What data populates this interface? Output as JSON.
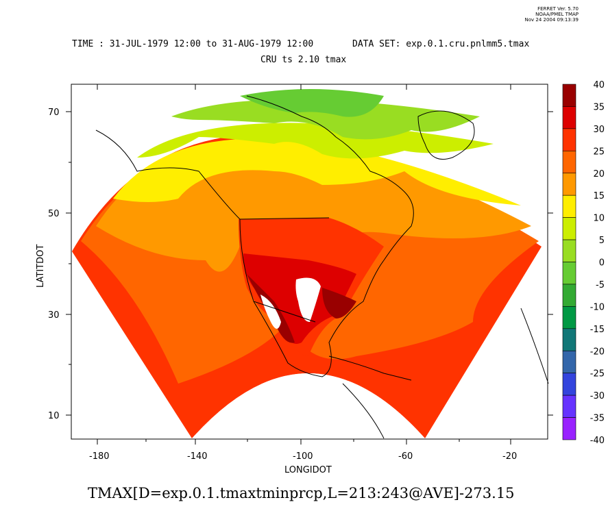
{
  "stamp": {
    "line1": "FERRET Ver. 5.70",
    "line2": "NOAA/PMEL TMAP",
    "line3": "Nov 24 2004 09:13:39"
  },
  "header": {
    "time_range": "TIME : 31-JUL-1979 12:00 to 31-AUG-1979 12:00",
    "dataset": "DATA SET: exp.0.1.cru.pnlmm5.tmax",
    "subtitle": "CRU ts 2.10 tmax"
  },
  "axes": {
    "xlabel": "LONGIDOT",
    "ylabel": "LATITDOT",
    "x_ticks": [
      "-180",
      "-140",
      "-100",
      "-60",
      "-20"
    ],
    "y_ticks": [
      "70",
      "50",
      "30",
      "10"
    ]
  },
  "colorbar": {
    "levels": [
      "40",
      "35",
      "30",
      "25",
      "20",
      "15",
      "10",
      "5",
      "0",
      "-5",
      "-10",
      "-15",
      "-20",
      "-25",
      "-30",
      "-35",
      "-40"
    ],
    "colors": [
      "#990000",
      "#dd0000",
      "#ff3300",
      "#ff6600",
      "#ff9900",
      "#ffee00",
      "#ccee00",
      "#99dd22",
      "#66cc33",
      "#33aa33",
      "#009944",
      "#117777",
      "#3366aa",
      "#3344dd",
      "#6633ff",
      "#9922ff",
      "#dd00ee"
    ]
  },
  "footer": {
    "expression": "TMAX[D=exp.0.1.tmaxtminprcp,L=213:243@AVE]-273.15"
  }
}
